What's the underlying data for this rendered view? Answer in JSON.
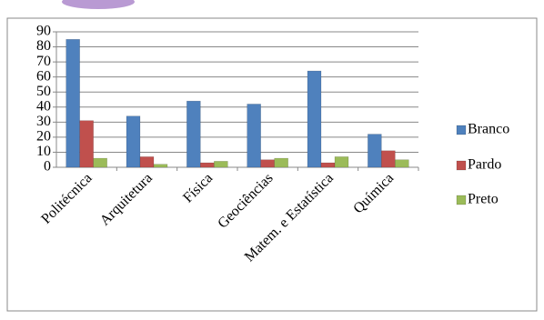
{
  "chart_data": {
    "type": "bar",
    "categories": [
      "Politécnica",
      "Arquitetura",
      "Física",
      "Geociências",
      "Matem. e Estatística",
      "Química"
    ],
    "series": [
      {
        "name": "Branco",
        "color": "#4f81bd",
        "values": [
          85,
          34,
          44,
          42,
          64,
          22
        ]
      },
      {
        "name": "Pardo",
        "color": "#c0504d",
        "values": [
          31,
          7,
          3,
          5,
          3,
          11
        ]
      },
      {
        "name": "Preto",
        "color": "#9bbb59",
        "values": [
          6,
          2,
          4,
          6,
          7,
          5
        ]
      }
    ],
    "ylim": [
      0,
      90
    ],
    "yticks": [
      0,
      10,
      20,
      30,
      40,
      50,
      60,
      70,
      80,
      90
    ],
    "grid": true,
    "legend": "right"
  }
}
